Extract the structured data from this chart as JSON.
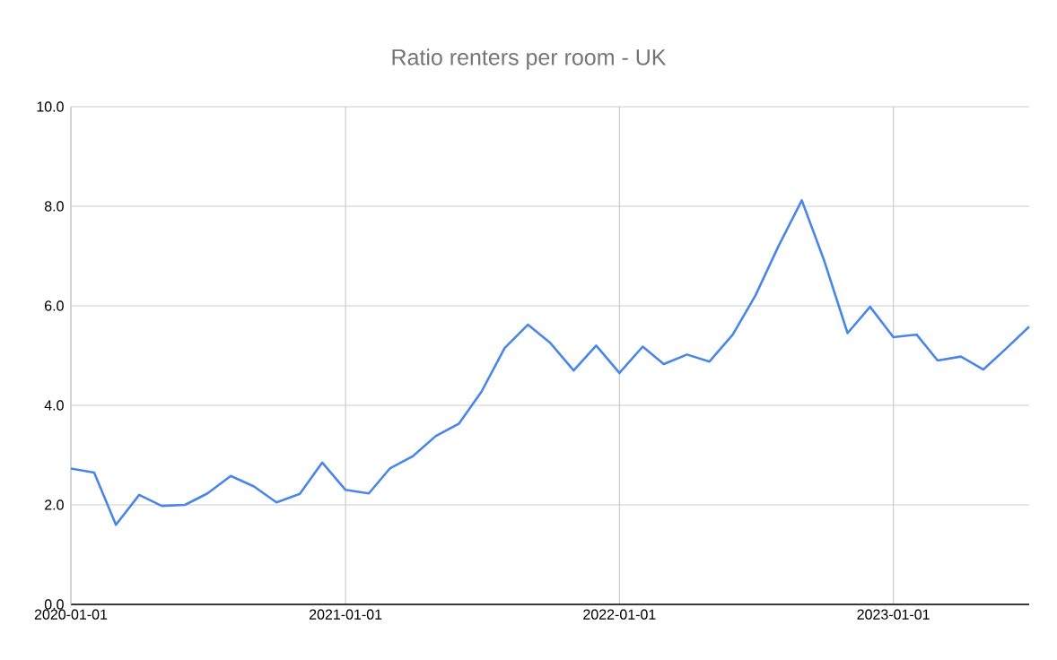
{
  "chart_data": {
    "type": "line",
    "title": "Ratio renters per room - UK",
    "x": [
      "2020-01-01",
      "2020-02-01",
      "2020-03-01",
      "2020-04-01",
      "2020-05-01",
      "2020-06-01",
      "2020-07-01",
      "2020-08-01",
      "2020-09-01",
      "2020-10-01",
      "2020-11-01",
      "2020-12-01",
      "2021-01-01",
      "2021-02-01",
      "2021-03-01",
      "2021-04-01",
      "2021-05-01",
      "2021-06-01",
      "2021-07-01",
      "2021-08-01",
      "2021-09-01",
      "2021-10-01",
      "2021-11-01",
      "2021-12-01",
      "2022-01-01",
      "2022-02-01",
      "2022-03-01",
      "2022-04-01",
      "2022-05-01",
      "2022-06-01",
      "2022-07-01",
      "2022-08-01",
      "2022-09-01",
      "2022-10-01",
      "2022-11-01",
      "2022-12-01",
      "2023-01-01",
      "2023-02-01",
      "2023-03-01",
      "2023-04-01",
      "2023-05-01",
      "2023-06-01",
      "2023-07-01"
    ],
    "series": [
      {
        "color": "#4a86e8",
        "values": [
          2.73,
          2.65,
          1.6,
          2.2,
          1.98,
          2.0,
          2.23,
          2.58,
          2.37,
          2.05,
          2.22,
          2.85,
          2.3,
          2.23,
          2.73,
          2.98,
          3.38,
          3.63,
          4.27,
          5.15,
          5.62,
          5.25,
          4.7,
          5.2,
          4.65,
          5.18,
          4.83,
          5.02,
          4.88,
          5.42,
          6.2,
          7.2,
          8.12,
          6.9,
          5.45,
          5.98,
          5.37,
          5.42,
          4.9,
          4.98,
          4.72,
          5.15,
          5.58
        ]
      }
    ],
    "xlim": [
      "2020-01-01",
      "2023-07-01"
    ],
    "xticks": [
      "2020-01-01",
      "2021-01-01",
      "2022-01-01",
      "2023-01-01"
    ],
    "ylim": [
      0,
      10
    ],
    "yticks": [
      {
        "value": 0,
        "label": "0.0"
      },
      {
        "value": 2,
        "label": "2.0"
      },
      {
        "value": 4,
        "label": "4.0"
      },
      {
        "value": 6,
        "label": "6.0"
      },
      {
        "value": 8,
        "label": "8.0"
      },
      {
        "value": 10,
        "label": "10.0"
      }
    ],
    "grid": true,
    "marker": "none",
    "line_style": "solid"
  }
}
